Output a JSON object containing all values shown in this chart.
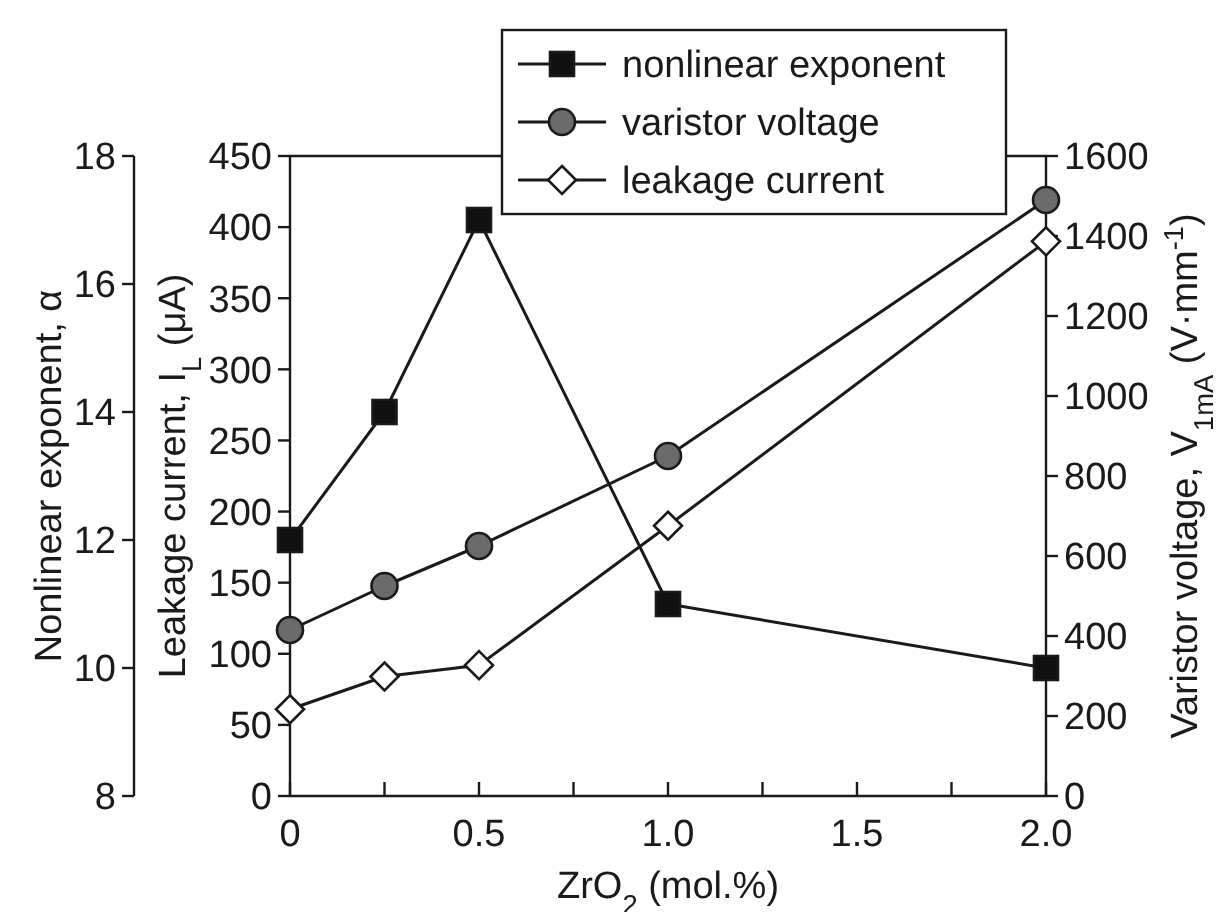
{
  "chart_data": {
    "type": "line",
    "xlabel": "ZrO$_{2}$ (mol.%)",
    "ylabel": "Leakage current, I$_{L}$ (μA)",
    "y2label": "Varistor voltage, V$_{1mA}$ (V·mm$^{-1}$)",
    "y3label": "Nonlinear exponent, α",
    "x": [
      0,
      0.25,
      0.5,
      1.0,
      2.0
    ],
    "xlim": [
      0,
      2.0
    ],
    "xticks": [
      0,
      {
        "value": 0.25,
        "label": null
      },
      {
        "value": 0.5,
        "label": "0.5"
      },
      {
        "value": 0.75,
        "label": null
      },
      {
        "value": 1.0,
        "label": "1.0"
      },
      {
        "value": 1.25,
        "label": null
      },
      {
        "value": 1.5,
        "label": "1.5"
      },
      {
        "value": 1.75,
        "label": null
      },
      {
        "value": 2.0,
        "label": "2.0"
      }
    ],
    "ylim": [
      0,
      450
    ],
    "yticks": [
      0,
      50,
      100,
      150,
      200,
      250,
      300,
      350,
      400,
      450
    ],
    "y2lim": [
      0,
      1600
    ],
    "y2ticks": [
      0,
      200,
      400,
      600,
      800,
      1000,
      1200,
      1400,
      1600
    ],
    "y3lim": [
      8,
      18
    ],
    "y3ticks": [
      8,
      10,
      12,
      14,
      16,
      18
    ],
    "grid": false,
    "legend": "top right",
    "line_style": "solid",
    "series": [
      {
        "name": "nonlinear exponent",
        "color": "#111111",
        "marker": "square",
        "axis": "y3",
        "values": [
          12.0,
          14.0,
          17.0,
          11.0,
          10.0
        ]
      },
      {
        "name": "varistor voltage",
        "color": "#6b6b6b",
        "marker": "circle",
        "axis": "y2",
        "values": [
          415,
          525,
          625,
          850,
          1490
        ]
      },
      {
        "name": "leakage current",
        "color": "#ffffff",
        "marker": "diamond",
        "axis": "y",
        "values": [
          61,
          84,
          92,
          190,
          390
        ]
      }
    ]
  }
}
